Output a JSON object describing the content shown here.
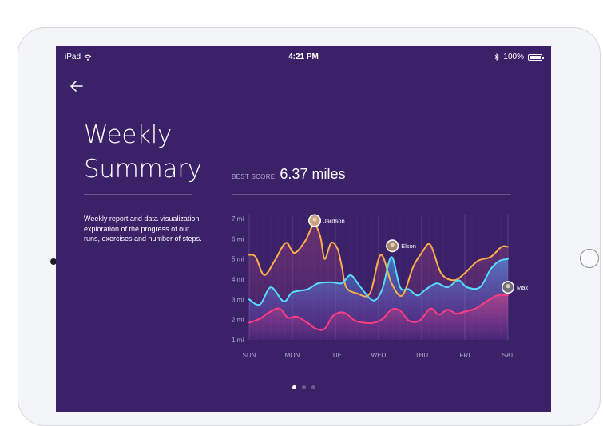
{
  "status_bar": {
    "device": "iPad",
    "time": "4:21 PM",
    "battery": "100%",
    "icons": [
      "wifi-icon",
      "bluetooth-icon",
      "battery-icon"
    ]
  },
  "header": {
    "back_icon": "arrow-left-icon",
    "title_line1": "Weekly",
    "title_line2": "Summary"
  },
  "description": "Weekly report and data visualization exploration of the progress of our runs, exercises and number of steps.",
  "best_score": {
    "label": "BEST SCORE",
    "value": "6.37 miles"
  },
  "pagination": {
    "count": 3,
    "active": 0
  },
  "colors": {
    "background": "#3a2168",
    "series_orange": "#ffad4b",
    "series_cyan": "#55dcff",
    "series_pink": "#ff3d7f"
  },
  "chart_data": {
    "type": "line",
    "x": [
      "SUN",
      "MON",
      "TUE",
      "WED",
      "THU",
      "FRI",
      "SAT"
    ],
    "y_ticks": [
      "1 mi",
      "2 mi",
      "3 mi",
      "4 mi",
      "5 mi",
      "6 mi",
      "7 mi"
    ],
    "ylim": [
      1,
      7
    ],
    "grid": true,
    "series": [
      {
        "name": "Jardson",
        "color": "#ffad4b",
        "points": [
          [
            0,
            5.2
          ],
          [
            0.15,
            5.1
          ],
          [
            0.35,
            4.2
          ],
          [
            0.6,
            4.95
          ],
          [
            0.85,
            5.8
          ],
          [
            1.05,
            5.3
          ],
          [
            1.3,
            5.9
          ],
          [
            1.5,
            6.7
          ],
          [
            1.65,
            6.1
          ],
          [
            1.75,
            5.0
          ],
          [
            1.9,
            5.8
          ],
          [
            2.05,
            5.5
          ],
          [
            2.15,
            4.6
          ],
          [
            2.25,
            3.6
          ],
          [
            2.5,
            3.3
          ],
          [
            2.8,
            3.3
          ],
          [
            3.05,
            5.2
          ],
          [
            3.3,
            3.8
          ],
          [
            3.55,
            3.2
          ],
          [
            3.8,
            4.6
          ],
          [
            4.0,
            5.3
          ],
          [
            4.2,
            5.7
          ],
          [
            4.45,
            4.3
          ],
          [
            4.75,
            3.95
          ],
          [
            5.0,
            4.3
          ],
          [
            5.3,
            4.9
          ],
          [
            5.6,
            5.1
          ],
          [
            5.85,
            5.6
          ],
          [
            6.0,
            5.6
          ]
        ]
      },
      {
        "name": "Elson",
        "color": "#55dcff",
        "points": [
          [
            0,
            3.0
          ],
          [
            0.25,
            2.75
          ],
          [
            0.5,
            3.6
          ],
          [
            0.8,
            2.9
          ],
          [
            1.0,
            3.35
          ],
          [
            1.35,
            3.5
          ],
          [
            1.6,
            3.8
          ],
          [
            1.9,
            3.85
          ],
          [
            2.15,
            3.8
          ],
          [
            2.35,
            4.2
          ],
          [
            2.55,
            3.7
          ],
          [
            2.8,
            3.05
          ],
          [
            2.95,
            3.0
          ],
          [
            3.1,
            3.6
          ],
          [
            3.3,
            5.1
          ],
          [
            3.5,
            3.6
          ],
          [
            3.7,
            3.5
          ],
          [
            3.9,
            3.2
          ],
          [
            4.1,
            3.5
          ],
          [
            4.35,
            3.8
          ],
          [
            4.6,
            3.6
          ],
          [
            4.85,
            3.95
          ],
          [
            5.05,
            3.6
          ],
          [
            5.35,
            3.6
          ],
          [
            5.6,
            4.5
          ],
          [
            5.8,
            4.9
          ],
          [
            6.0,
            5.0
          ]
        ]
      },
      {
        "name": "Max",
        "color": "#ff3d7f",
        "points": [
          [
            0,
            1.85
          ],
          [
            0.25,
            2.05
          ],
          [
            0.45,
            2.35
          ],
          [
            0.7,
            2.55
          ],
          [
            0.9,
            2.1
          ],
          [
            1.1,
            2.15
          ],
          [
            1.35,
            1.85
          ],
          [
            1.55,
            1.55
          ],
          [
            1.75,
            1.55
          ],
          [
            1.95,
            2.2
          ],
          [
            2.2,
            2.35
          ],
          [
            2.45,
            1.95
          ],
          [
            2.65,
            1.85
          ],
          [
            2.9,
            1.85
          ],
          [
            3.1,
            2.05
          ],
          [
            3.3,
            2.5
          ],
          [
            3.5,
            2.45
          ],
          [
            3.7,
            1.95
          ],
          [
            3.95,
            1.95
          ],
          [
            4.2,
            2.55
          ],
          [
            4.4,
            2.25
          ],
          [
            4.6,
            2.5
          ],
          [
            4.8,
            2.3
          ],
          [
            5.0,
            2.4
          ],
          [
            5.25,
            2.55
          ],
          [
            5.5,
            2.9
          ],
          [
            5.75,
            3.2
          ],
          [
            6.0,
            3.2
          ]
        ]
      }
    ],
    "annotations": [
      {
        "name": "Jardson",
        "x": 1.5,
        "y": 6.9,
        "avatar": "avatar-jardson"
      },
      {
        "name": "Elson",
        "x": 3.3,
        "y": 5.65,
        "avatar": "avatar-elson"
      },
      {
        "name": "Max",
        "x": 6.0,
        "y": 3.6,
        "avatar": "avatar-max"
      }
    ]
  }
}
